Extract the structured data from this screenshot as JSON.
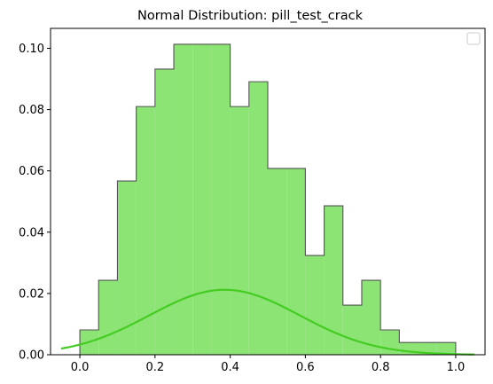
{
  "chart_data": {
    "type": "histogram",
    "title": "Normal Distribution: pill_test_crack",
    "xlabel": "",
    "ylabel": "",
    "xlim": [
      -0.078,
      1.078
    ],
    "ylim": [
      0,
      0.1065
    ],
    "x_ticks": [
      0.0,
      0.2,
      0.4,
      0.6,
      0.8,
      1.0
    ],
    "x_tick_labels": [
      "0.0",
      "0.2",
      "0.4",
      "0.6",
      "0.8",
      "1.0"
    ],
    "y_ticks": [
      0.0,
      0.02,
      0.04,
      0.06,
      0.08,
      0.1
    ],
    "y_tick_labels": [
      "0.00",
      "0.02",
      "0.04",
      "0.06",
      "0.08",
      "0.10"
    ],
    "grid": false,
    "legend": {
      "location": "upper right",
      "entries": []
    },
    "histogram": {
      "bin_edges": [
        0.0,
        0.05,
        0.1,
        0.15,
        0.2,
        0.25,
        0.3,
        0.35,
        0.4,
        0.45,
        0.5,
        0.55,
        0.6,
        0.65,
        0.7,
        0.75,
        0.8,
        0.85,
        0.9,
        0.95,
        1.0
      ],
      "heights": [
        0.0081,
        0.0243,
        0.0567,
        0.081,
        0.0932,
        0.1013,
        0.1013,
        0.1013,
        0.081,
        0.0891,
        0.0608,
        0.0608,
        0.0324,
        0.0486,
        0.0162,
        0.0243,
        0.0081,
        0.004,
        0.004,
        0.004
      ],
      "fill_color": "#8be474",
      "edge_color": "#555555"
    },
    "curve": {
      "type": "normal_pdf",
      "x_range": [
        -0.05,
        1.05
      ],
      "mean": 0.385,
      "std": 0.2,
      "peak": 0.0212,
      "color": "#44cc22"
    }
  }
}
